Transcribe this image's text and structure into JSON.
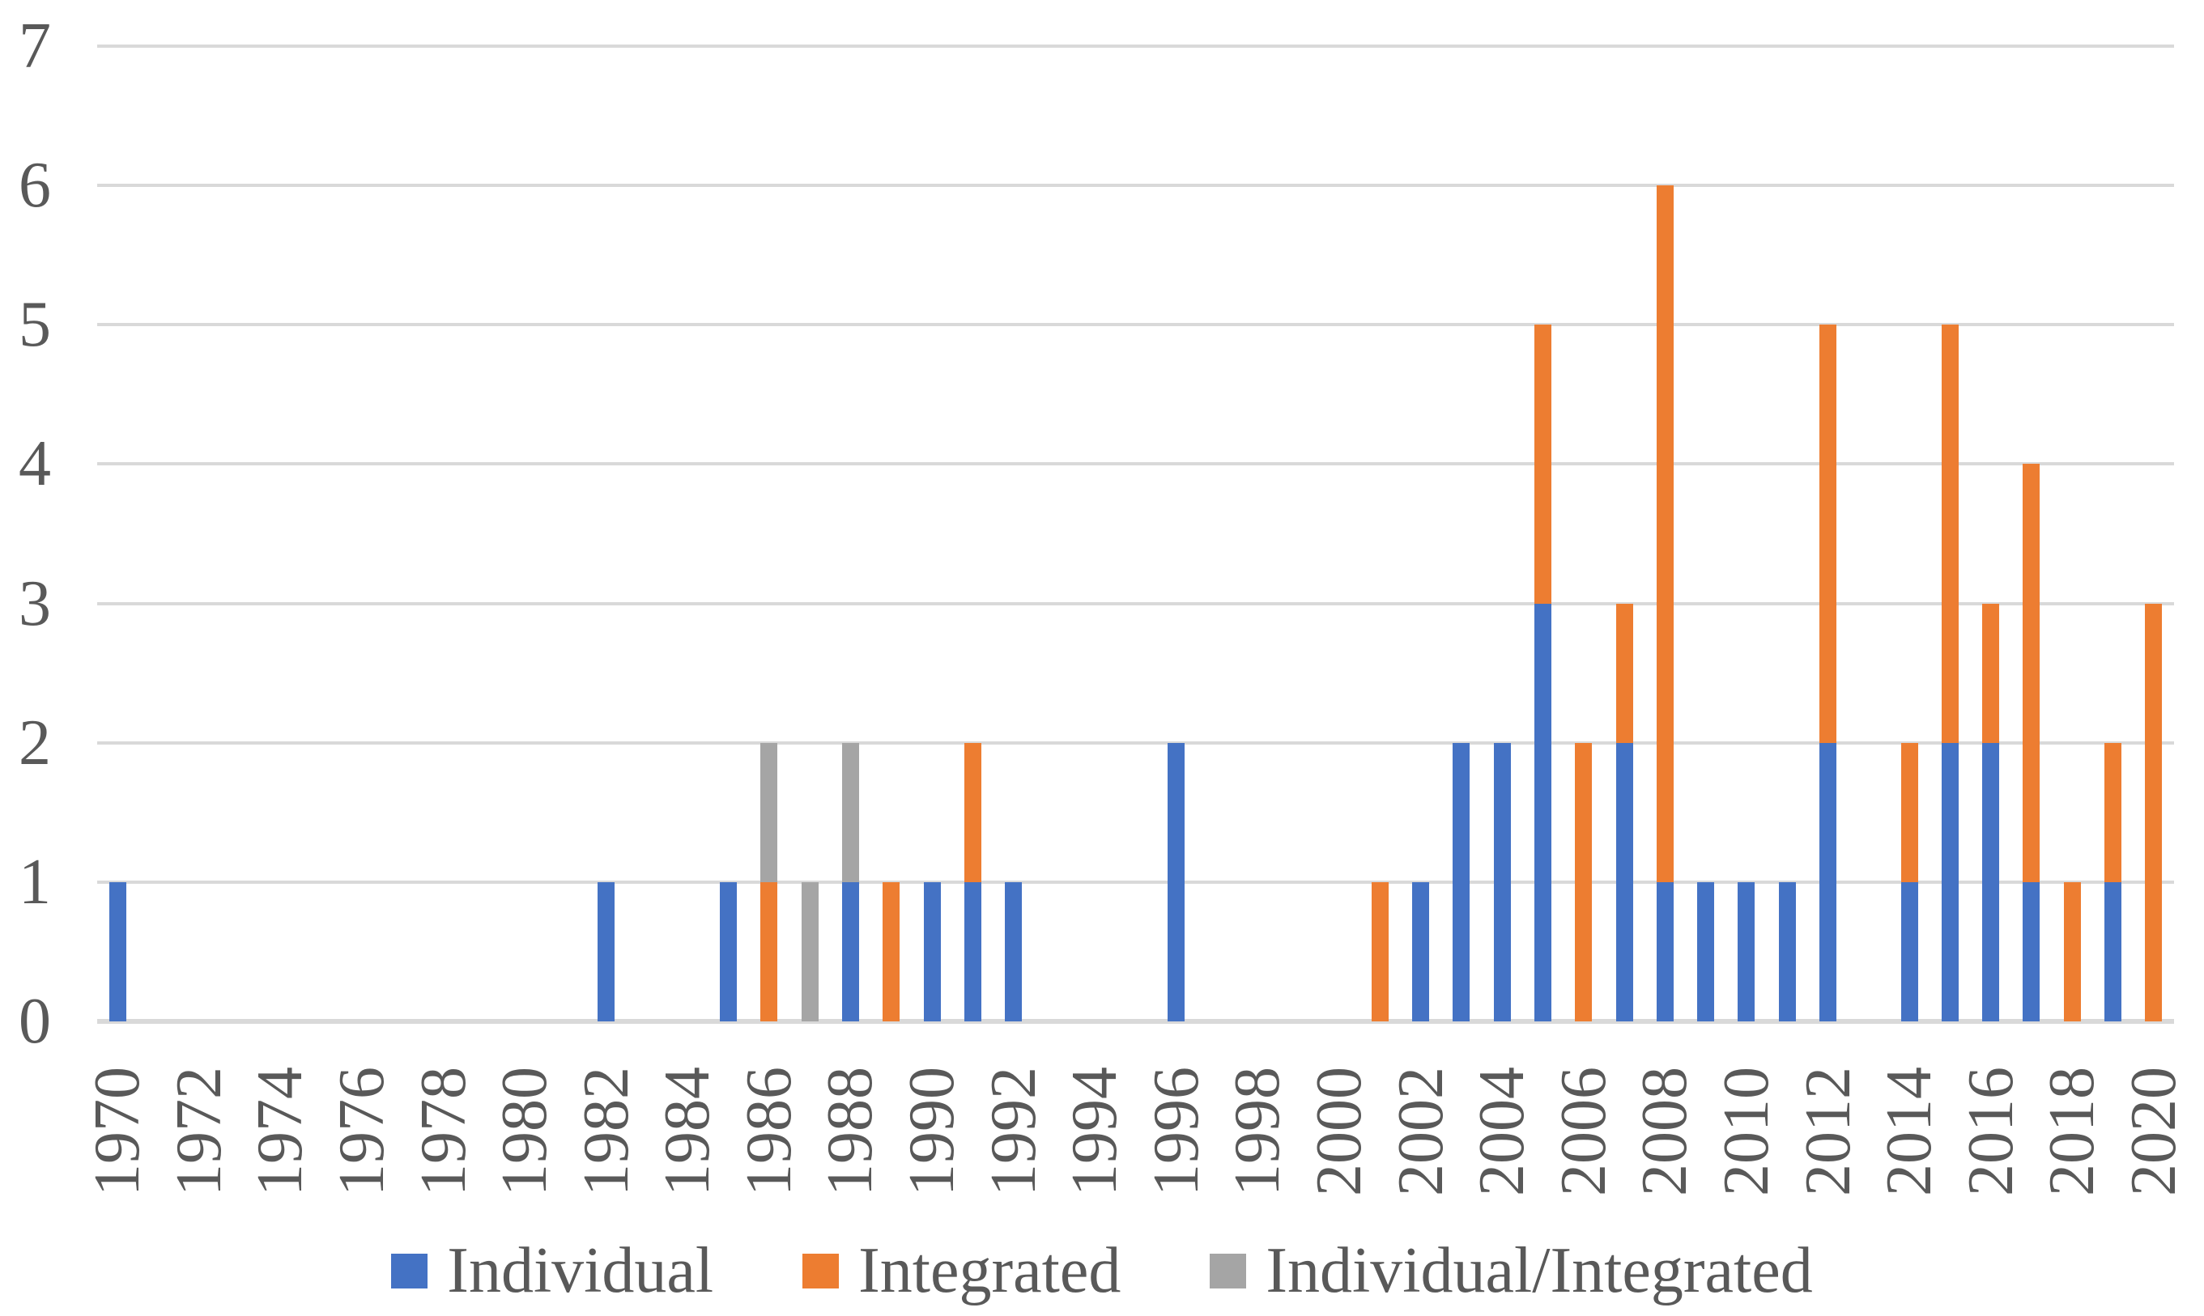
{
  "chart_data": {
    "type": "bar",
    "stacked": true,
    "title": "",
    "xlabel": "",
    "ylabel": "",
    "ylim": [
      0,
      7
    ],
    "yticks": [
      0,
      1,
      2,
      3,
      4,
      5,
      6,
      7
    ],
    "grid": "horizontal",
    "gridline_color": "#D9D9D9",
    "axis_text_color": "#595959",
    "background_color": "#FFFFFF",
    "legend_position": "bottom",
    "x_tick_step": 2,
    "x_tick_labels": [
      "1970",
      "1972",
      "1974",
      "1976",
      "1978",
      "1980",
      "1982",
      "1984",
      "1986",
      "1988",
      "1990",
      "1992",
      "1994",
      "1996",
      "1998",
      "2000",
      "2002",
      "2004",
      "2006",
      "2008",
      "2010",
      "2012",
      "2014",
      "2016",
      "2018",
      "2020"
    ],
    "categories": [
      1970,
      1971,
      1972,
      1973,
      1974,
      1975,
      1976,
      1977,
      1978,
      1979,
      1980,
      1981,
      1982,
      1983,
      1984,
      1985,
      1986,
      1987,
      1988,
      1989,
      1990,
      1991,
      1992,
      1993,
      1994,
      1995,
      1996,
      1997,
      1998,
      1999,
      2000,
      2001,
      2002,
      2003,
      2004,
      2005,
      2006,
      2007,
      2008,
      2009,
      2010,
      2011,
      2012,
      2013,
      2014,
      2015,
      2016,
      2017,
      2018,
      2019,
      2020
    ],
    "series": [
      {
        "name": "Individual",
        "color": "#4472C4",
        "values": [
          1,
          0,
          0,
          0,
          0,
          0,
          0,
          0,
          0,
          0,
          0,
          0,
          1,
          0,
          0,
          1,
          0,
          0,
          1,
          0,
          1,
          1,
          1,
          0,
          0,
          0,
          2,
          0,
          0,
          0,
          0,
          0,
          1,
          2,
          2,
          3,
          0,
          2,
          1,
          1,
          1,
          1,
          2,
          0,
          1,
          2,
          2,
          1,
          0,
          1,
          0
        ]
      },
      {
        "name": "Integrated",
        "color": "#ED7D31",
        "values": [
          0,
          0,
          0,
          0,
          0,
          0,
          0,
          0,
          0,
          0,
          0,
          0,
          0,
          0,
          0,
          0,
          1,
          0,
          0,
          1,
          0,
          1,
          0,
          0,
          0,
          0,
          0,
          0,
          0,
          0,
          0,
          1,
          0,
          0,
          0,
          2,
          2,
          1,
          5,
          0,
          0,
          0,
          3,
          0,
          1,
          3,
          1,
          3,
          1,
          1,
          3
        ]
      },
      {
        "name": "Individual/Integrated",
        "color": "#A5A5A5",
        "values": [
          0,
          0,
          0,
          0,
          0,
          0,
          0,
          0,
          0,
          0,
          0,
          0,
          0,
          0,
          0,
          0,
          1,
          1,
          1,
          0,
          0,
          0,
          0,
          0,
          0,
          0,
          0,
          0,
          0,
          0,
          0,
          0,
          0,
          0,
          0,
          0,
          0,
          0,
          0,
          0,
          0,
          0,
          0,
          0,
          0,
          0,
          0,
          0,
          0,
          0,
          0
        ]
      }
    ]
  }
}
